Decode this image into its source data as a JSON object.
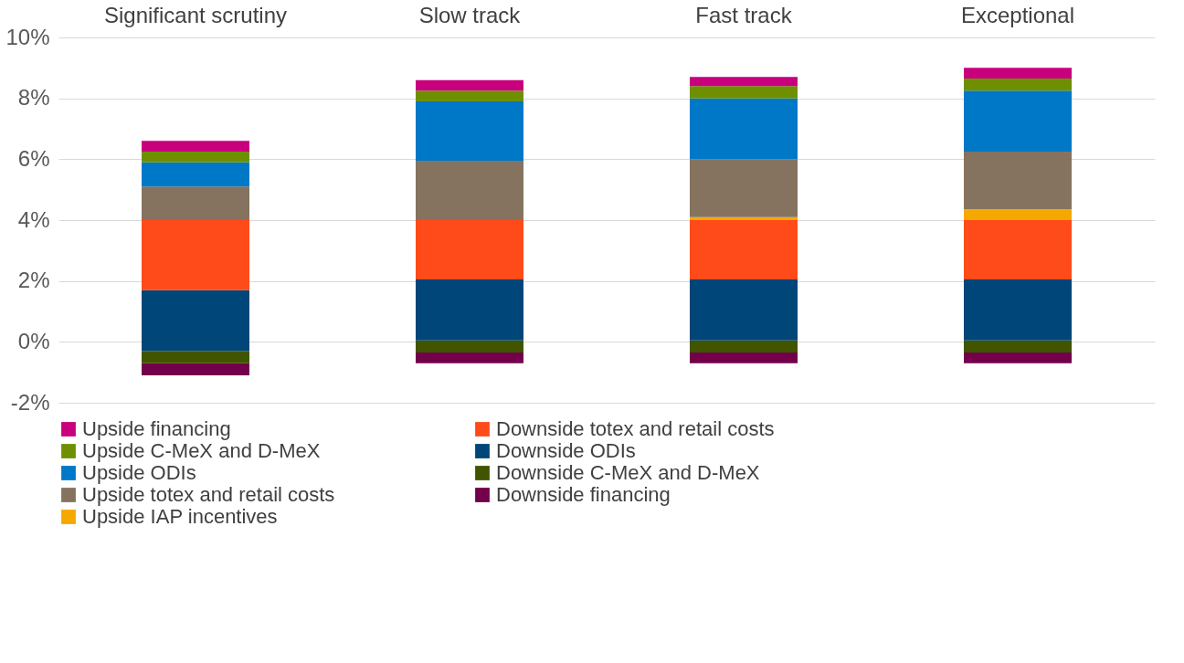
{
  "chart_data": {
    "type": "bar",
    "categories": [
      "Significant scrutiny",
      "Slow track",
      "Fast track",
      "Exceptional"
    ],
    "series": [
      {
        "name": "Downside financing",
        "color": "#73004b",
        "base": [
          -1.1,
          -0.7,
          -0.7,
          -0.7
        ],
        "values": [
          0.4,
          0.35,
          0.35,
          0.35
        ]
      },
      {
        "name": "Downside C-MeX and D-MeX",
        "color": "#415500",
        "base": [
          -0.7,
          -0.35,
          -0.35,
          -0.35
        ],
        "values": [
          0.4,
          0.4,
          0.4,
          0.4
        ]
      },
      {
        "name": "Downside ODIs",
        "color": "#004678",
        "base": [
          -0.3,
          0.05,
          0.05,
          0.05
        ],
        "values": [
          2.0,
          2.0,
          2.0,
          2.0
        ]
      },
      {
        "name": "Downside totex and retail costs",
        "color": "#ff4b19",
        "base": [
          1.7,
          2.05,
          2.05,
          2.05
        ],
        "values": [
          2.3,
          1.95,
          1.95,
          1.95
        ]
      },
      {
        "name": "Upside IAP incentives",
        "color": "#f5a800",
        "base": [
          null,
          null,
          4.0,
          4.0
        ],
        "values": [
          null,
          null,
          0.1,
          0.35
        ]
      },
      {
        "name": "Upside totex and retail costs",
        "color": "#857360",
        "base": [
          4.0,
          4.0,
          4.1,
          4.35
        ],
        "values": [
          1.1,
          1.95,
          1.9,
          1.9
        ]
      },
      {
        "name": "Upside ODIs",
        "color": "#0078c8",
        "base": [
          5.1,
          5.95,
          6.0,
          6.25
        ],
        "values": [
          0.8,
          1.95,
          2.0,
          2.0
        ]
      },
      {
        "name": "Upside C-MeX and D-MeX",
        "color": "#6e9000",
        "base": [
          5.9,
          7.9,
          8.0,
          8.25
        ],
        "values": [
          0.35,
          0.35,
          0.4,
          0.4
        ]
      },
      {
        "name": "Upside financing",
        "color": "#c8007d",
        "base": [
          6.25,
          8.25,
          8.4,
          8.65
        ],
        "values": [
          0.35,
          0.35,
          0.3,
          0.35
        ]
      }
    ],
    "ylim": [
      -2,
      10
    ],
    "yticks": [
      {
        "value": -2,
        "label": "-2%"
      },
      {
        "value": 0,
        "label": "0%"
      },
      {
        "value": 2,
        "label": "2%"
      },
      {
        "value": 4,
        "label": "4%"
      },
      {
        "value": 6,
        "label": "6%"
      },
      {
        "value": 8,
        "label": "8%"
      },
      {
        "value": 10,
        "label": "10%"
      }
    ],
    "grid": "y",
    "legend": "bottom"
  }
}
